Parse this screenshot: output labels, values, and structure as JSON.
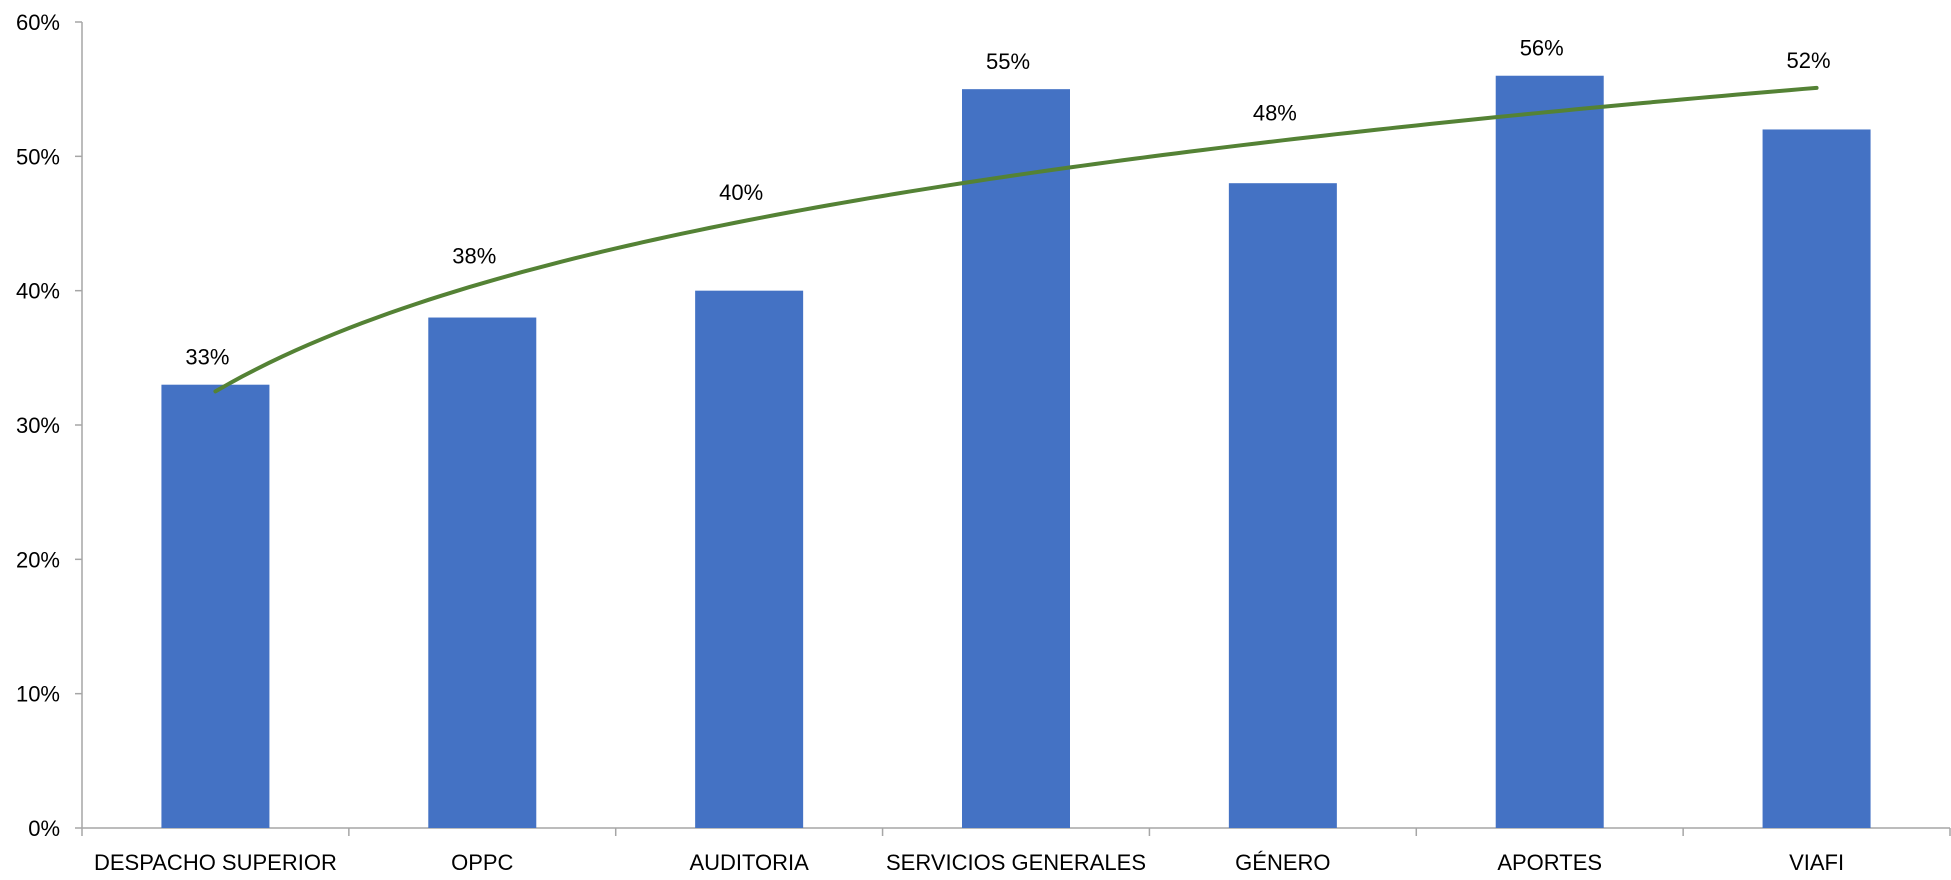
{
  "chart_data": {
    "type": "bar",
    "categories": [
      "DESPACHO SUPERIOR",
      "OPPC",
      "AUDITORIA",
      "SERVICIOS GENERALES",
      "GÉNERO",
      "APORTES",
      "VIAFI"
    ],
    "values": [
      33,
      38,
      40,
      55,
      48,
      56,
      52
    ],
    "data_labels": [
      "33%",
      "38%",
      "40%",
      "55%",
      "48%",
      "56%",
      "52%"
    ],
    "value_unit": "%",
    "ylim": [
      0,
      60
    ],
    "yticks": [
      0,
      10,
      20,
      30,
      40,
      50,
      60
    ],
    "ytick_labels": [
      "0%",
      "10%",
      "20%",
      "30%",
      "40%",
      "50%",
      "60%"
    ],
    "trendline": {
      "type": "logarithmic",
      "x": [
        1,
        7
      ],
      "y": [
        32.5,
        55.1
      ]
    },
    "title": "",
    "xlabel": "",
    "ylabel": "",
    "grid": false,
    "legend": "none",
    "colors": {
      "bar": "#4472C4",
      "trendline": "#548235",
      "axis": "#A6A6A6"
    }
  }
}
